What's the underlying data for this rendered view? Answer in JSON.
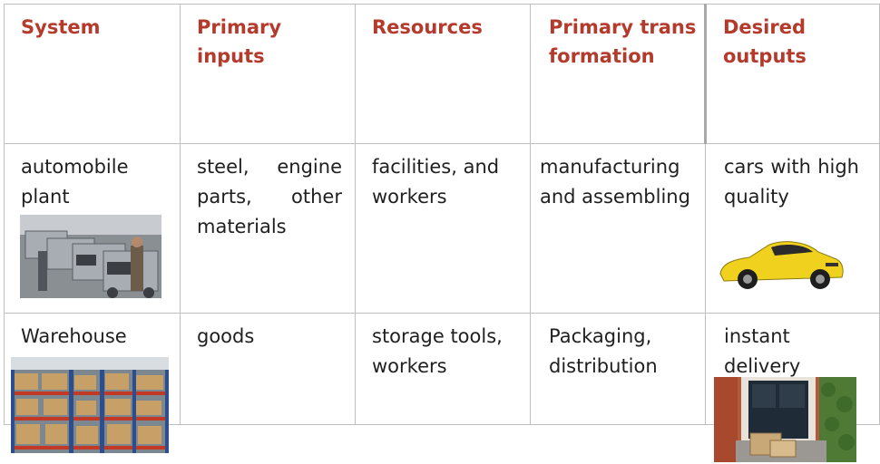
{
  "table": {
    "headers": [
      "System",
      "Primary inputs",
      "Resources",
      "Primary transformation",
      "Desired outputs"
    ],
    "rows": [
      [
        "automobile plant",
        "steel, engine parts, other materials",
        "facilities, and workers",
        "manufacturing and assembling",
        "cars with high quality"
      ],
      [
        "Warehouse",
        "goods",
        "storage tools, workers",
        "Packaging, distribution",
        "instant delivery"
      ]
    ]
  },
  "images": [
    "assembly-line-photo",
    "yellow-sports-car-photo",
    "warehouse-shelves-photo",
    "doorstep-package-photo"
  ],
  "colors": {
    "header_text": "#b43a2c",
    "body_text": "#1f1f1f",
    "grid": "#bfbfbf"
  }
}
